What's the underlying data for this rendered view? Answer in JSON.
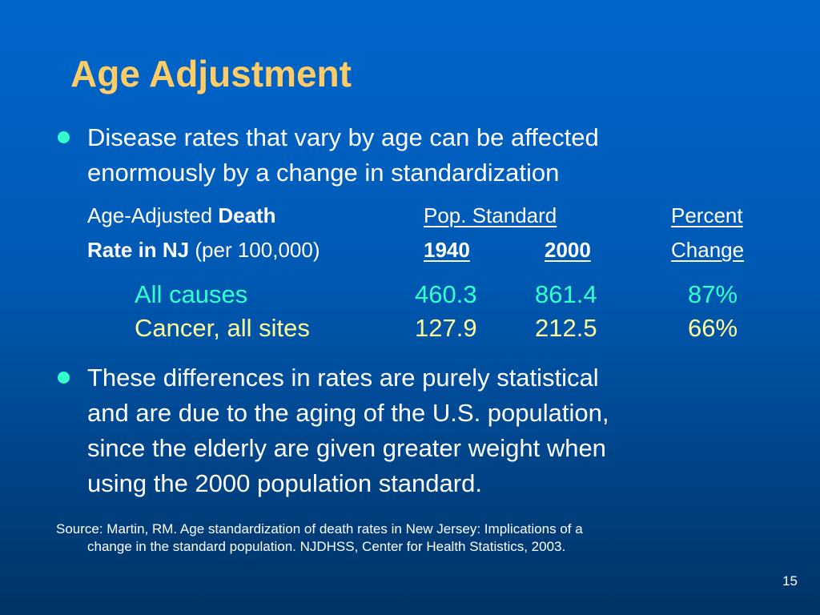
{
  "slide": {
    "title": "Age Adjustment",
    "page_number": "15",
    "colors": {
      "background_top": "#0066CC",
      "background_bottom": "#003366",
      "title": "#FFCC66",
      "bullet": "#33FFCC",
      "row_all_causes": "#33FFCC",
      "row_cancer": "#FFFF99"
    }
  },
  "bullets": [
    {
      "icon": "bullet-dot",
      "lines": [
        "Disease rates that vary by age can be affected",
        "enormously by a change in standardization"
      ]
    },
    {
      "icon": "bullet-dot",
      "lines": [
        "These differences in rates are purely statistical",
        "and are due to the aging of the U.S. population,",
        "since the elderly are given greater weight when",
        "using the 2000 population standard."
      ]
    }
  ],
  "table": {
    "header": {
      "label_line1_prefix": "Age-Adjusted ",
      "label_line1_bold": "Death",
      "label_line2_bold": "Rate in NJ",
      "label_line2_suffix": " (per 100,000)",
      "pop_standard": "Pop. Standard",
      "year_1940": "1940",
      "year_2000": "2000",
      "percent_line1": "Percent",
      "percent_line2": "Change"
    },
    "rows": [
      {
        "label": "All causes",
        "v1940": "460.3",
        "v2000": "861.4",
        "change": "87%"
      },
      {
        "label": "Cancer, all sites",
        "v1940": "127.9",
        "v2000": "212.5",
        "change": "66%"
      }
    ]
  },
  "source": {
    "line1": "Source: Martin, RM. Age standardization of death rates in New Jersey: Implications of a",
    "line2": "change in the standard population. NJDHSS, Center for Health Statistics, 2003."
  }
}
